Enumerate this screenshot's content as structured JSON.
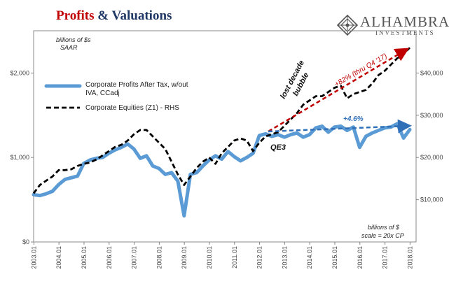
{
  "header": {
    "title_part1": "Profits",
    "title_amp": " & ",
    "title_part2": "Valuations"
  },
  "logo": {
    "name": "ALHAMBRA",
    "sub": "INVESTMENTS"
  },
  "notes": {
    "left_unit_line1": "billions of $s",
    "left_unit_line2": "SAAR",
    "right_unit_line1": "billions of $",
    "right_unit_line2": "scale = 20x CP"
  },
  "annotations": {
    "lost_decade_line1": "lost decade",
    "lost_decade_line2": "bubble",
    "qe3": "QE3",
    "equities_gain": "+82% (thru Q4 '17)",
    "profits_gain": "+4.6%"
  },
  "colors": {
    "profits": "#5b9bd5",
    "equities": "#000000",
    "arrow_red": "#c00000",
    "arrow_blue": "#2e6fb7"
  },
  "chart_data": {
    "type": "line",
    "title": "Profits & Valuations",
    "x_tick_labels": [
      "2003.01",
      "2004.01",
      "2005.01",
      "2006.01",
      "2007.01",
      "2008.01",
      "2009.01",
      "2010.01",
      "2011.01",
      "2012.01",
      "2013.01",
      "2014.01",
      "2015.01",
      "2016.01",
      "2017.01",
      "2018.01"
    ],
    "x_range": [
      2003.0,
      2018.25
    ],
    "y_left": {
      "ticks": [
        "$0",
        "$1,000",
        "$2,000"
      ],
      "range": [
        0,
        2500
      ]
    },
    "y_right": {
      "ticks": [
        "$10,000",
        "$20,000",
        "$30,000",
        "$40,000"
      ],
      "range": [
        0,
        50000
      ]
    },
    "legend_placement": "top-left",
    "series": [
      {
        "name": "Corporate Profits After Tax, w/out IVA, CCadj",
        "axis": "left",
        "style": "solid",
        "x": [
          2003.0,
          2003.25,
          2003.5,
          2003.75,
          2004.0,
          2004.25,
          2004.5,
          2004.75,
          2005.0,
          2005.25,
          2005.5,
          2005.75,
          2006.0,
          2006.25,
          2006.5,
          2006.75,
          2007.0,
          2007.25,
          2007.5,
          2007.75,
          2008.0,
          2008.25,
          2008.5,
          2008.75,
          2009.0,
          2009.25,
          2009.5,
          2009.75,
          2010.0,
          2010.25,
          2010.5,
          2010.75,
          2011.0,
          2011.25,
          2011.5,
          2011.75,
          2012.0,
          2012.25,
          2012.5,
          2012.75,
          2013.0,
          2013.25,
          2013.5,
          2013.75,
          2014.0,
          2014.25,
          2014.5,
          2014.75,
          2015.0,
          2015.25,
          2015.5,
          2015.75,
          2016.0,
          2016.25,
          2016.5,
          2016.75,
          2017.0,
          2017.25,
          2017.5,
          2017.75,
          2018.0
        ],
        "values": [
          560,
          550,
          570,
          600,
          680,
          740,
          760,
          780,
          930,
          970,
          990,
          1000,
          1050,
          1090,
          1120,
          1160,
          1100,
          990,
          1020,
          900,
          870,
          800,
          820,
          720,
          310,
          800,
          820,
          900,
          970,
          1020,
          980,
          1070,
          1010,
          960,
          1000,
          1050,
          1260,
          1280,
          1250,
          1270,
          1240,
          1270,
          1290,
          1240,
          1270,
          1350,
          1370,
          1300,
          1360,
          1370,
          1320,
          1360,
          1120,
          1250,
          1290,
          1320,
          1350,
          1360,
          1400,
          1230,
          1330
        ]
      },
      {
        "name": "Corporate Equities (Z1) - RHS",
        "axis": "right",
        "style": "dashed",
        "x": [
          2003.0,
          2003.25,
          2003.5,
          2003.75,
          2004.0,
          2004.25,
          2004.5,
          2004.75,
          2005.0,
          2005.25,
          2005.5,
          2005.75,
          2006.0,
          2006.25,
          2006.5,
          2006.75,
          2007.0,
          2007.25,
          2007.5,
          2007.75,
          2008.0,
          2008.25,
          2008.5,
          2008.75,
          2009.0,
          2009.25,
          2009.5,
          2009.75,
          2010.0,
          2010.25,
          2010.5,
          2010.75,
          2011.0,
          2011.25,
          2011.5,
          2011.75,
          2012.0,
          2012.25,
          2012.5,
          2012.75,
          2013.0,
          2013.25,
          2013.5,
          2013.75,
          2014.0,
          2014.25,
          2014.5,
          2014.75,
          2015.0,
          2015.25,
          2015.5,
          2015.75,
          2016.0,
          2016.25,
          2016.5,
          2016.75,
          2017.0,
          2017.25,
          2017.5,
          2017.75,
          2018.0
        ],
        "values": [
          11500,
          13500,
          14500,
          15500,
          17000,
          17000,
          17200,
          18000,
          18500,
          18800,
          19500,
          20500,
          21500,
          22500,
          23000,
          24000,
          25500,
          26500,
          26500,
          25000,
          23500,
          22000,
          19000,
          16000,
          13500,
          15500,
          17500,
          19000,
          20000,
          18500,
          21000,
          22500,
          24000,
          24500,
          24000,
          21500,
          23500,
          25000,
          25500,
          26000,
          27500,
          29000,
          30500,
          32500,
          33500,
          34500,
          34500,
          35500,
          36500,
          37000,
          34000,
          35000,
          35500,
          36000,
          37500,
          39500,
          40500,
          42000,
          43500,
          44500,
          46000
        ]
      }
    ]
  }
}
